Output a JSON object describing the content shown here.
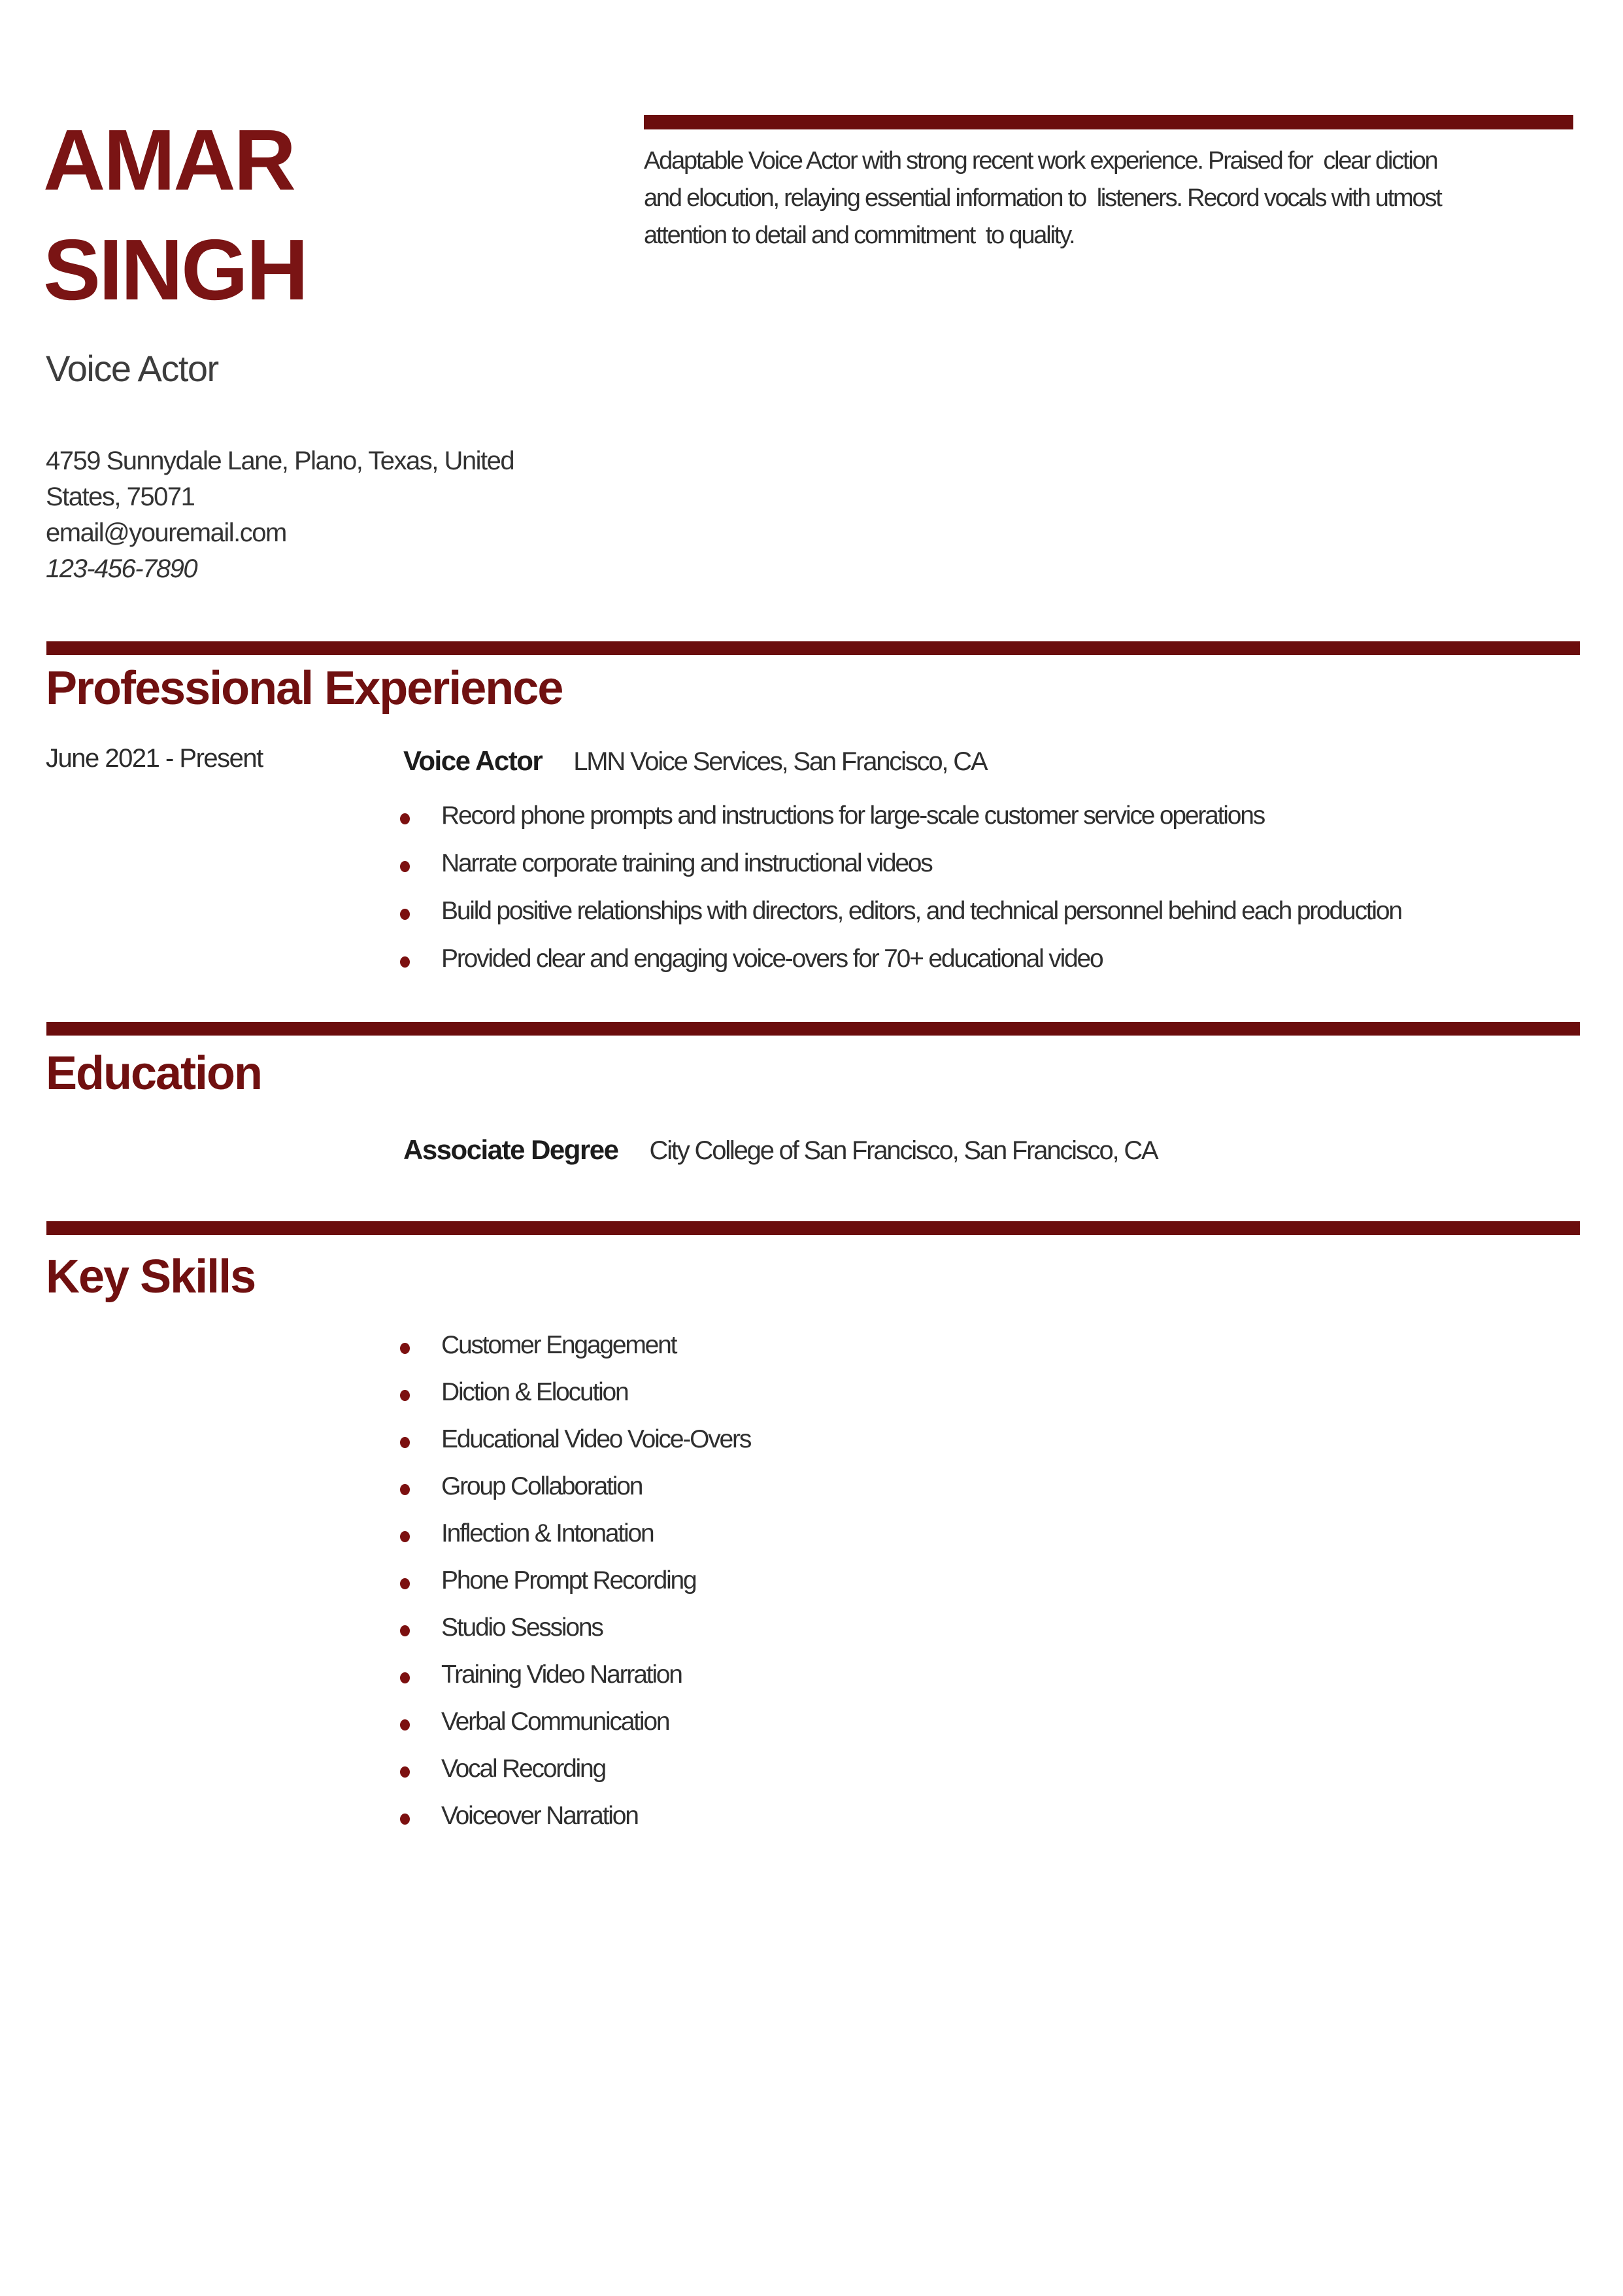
{
  "theme": {
    "bar_color": "#6b0d0d",
    "heading_color": "#701010",
    "name_color": "#7a1414",
    "bullet_dot_color": "#7c1010",
    "body_text_color": "#2f2f2f"
  },
  "header": {
    "name_line1": "AMAR",
    "name_line2": "SINGH",
    "job_title": "Voice Actor",
    "contact": {
      "address_line1": "4759 Sunnydale Lane, Plano, Texas, United",
      "address_line2": "States, 75071",
      "email": "email@youremail.com",
      "phone": "123-456-7890"
    },
    "summary_lines": [
      "Adaptable Voice Actor with strong recent work experience. Praised for  clear diction",
      "and elocution, relaying essential information to  listeners. Record vocals with utmost",
      "attention to detail and commitment  to quality."
    ]
  },
  "experience": {
    "heading": "Professional Experience",
    "jobs": [
      {
        "dates": "June 2021 - Present",
        "title": "Voice Actor",
        "company": "LMN Voice Services, San Francisco, CA",
        "bullets": [
          "Record phone prompts and instructions for large-scale customer service operations",
          "Narrate corporate training and instructional videos",
          "Build positive relationships with directors, editors, and technical personnel behind each production",
          "Provided clear and engaging voice-overs for 70+ educational video"
        ]
      }
    ]
  },
  "education": {
    "heading": "Education",
    "degree": "Associate Degree",
    "school": "City College of San Francisco, San Francisco, CA"
  },
  "skills": {
    "heading": "Key Skills",
    "items": [
      "Customer Engagement",
      "Diction & Elocution",
      "Educational Video Voice-Overs",
      "Group Collaboration",
      "Inflection & Intonation",
      "Phone Prompt Recording",
      "Studio Sessions",
      "Training Video Narration",
      "Verbal Communication",
      "Vocal Recording",
      "Voiceover Narration"
    ]
  }
}
